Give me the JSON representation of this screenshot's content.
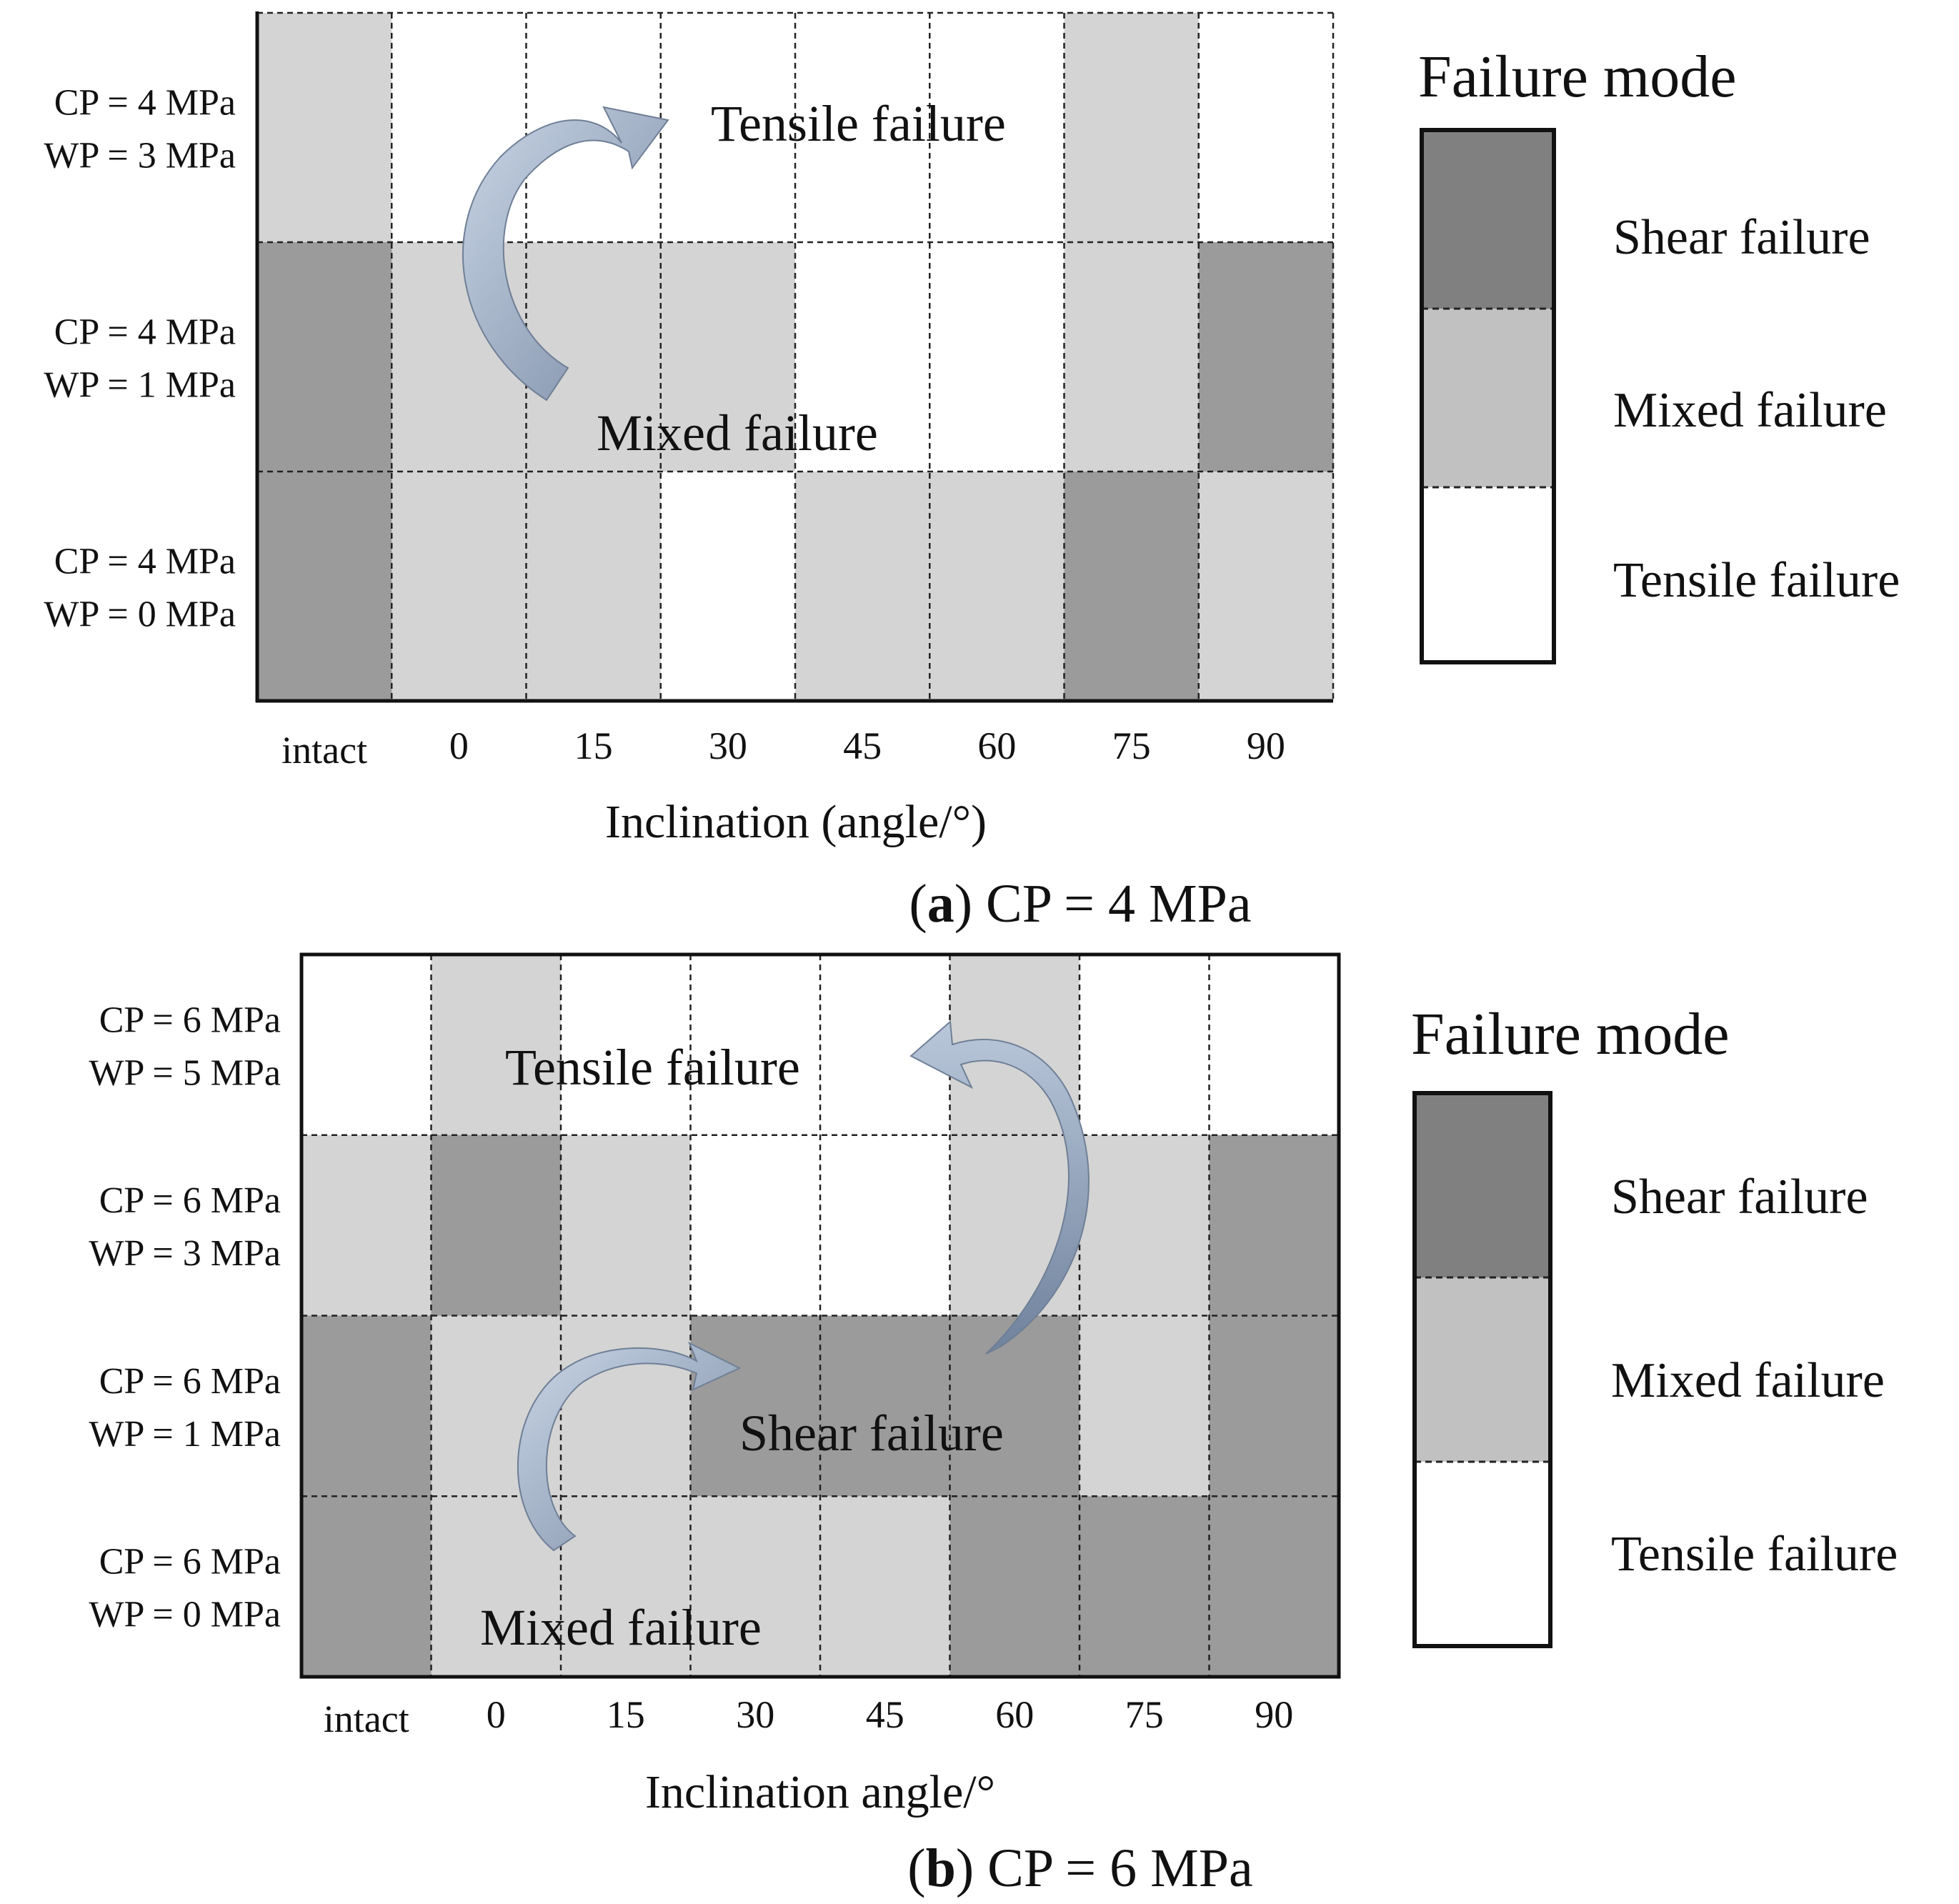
{
  "colors": {
    "Shear failure": "#9b9b9b",
    "Mixed failure": "#d4d4d4",
    "Tensile failure": "#ffffff",
    "legend_shear": "#808080",
    "legend_mixed": "#c1c1c1",
    "legend_tensile": "#ffffff",
    "arrow_light": "#c3d0e2",
    "arrow_dark": "#7d8ea6"
  },
  "chart_data": [
    {
      "type": "heatmap",
      "caption_letter": "a",
      "caption_rest": ") CP = 4 MPa",
      "xlabel": "Inclination (angle/°)",
      "x_categories": [
        "intact",
        "0",
        "15",
        "30",
        "45",
        "60",
        "75",
        "90"
      ],
      "rows": [
        {
          "label_line1": "CP = 4 MPa",
          "label_line2": "WP = 3 MPa",
          "modes": [
            "Mixed failure",
            "Tensile failure",
            "Tensile failure",
            "Tensile failure",
            "Tensile failure",
            "Tensile failure",
            "Mixed failure",
            "Tensile failure"
          ]
        },
        {
          "label_line1": "CP = 4 MPa",
          "label_line2": "WP = 1 MPa",
          "modes": [
            "Shear failure",
            "Mixed failure",
            "Mixed failure",
            "Mixed failure",
            "Tensile failure",
            "Tensile failure",
            "Mixed failure",
            "Shear failure"
          ]
        },
        {
          "label_line1": "CP = 4 MPa",
          "label_line2": "WP = 0 MPa",
          "modes": [
            "Shear failure",
            "Mixed failure",
            "Mixed failure",
            "Tensile failure",
            "Mixed failure",
            "Mixed failure",
            "Shear failure",
            "Mixed failure"
          ]
        }
      ],
      "annotations": [
        "Tensile failure",
        "Mixed failure"
      ],
      "legend": {
        "title": "Failure mode",
        "items": [
          "Shear failure",
          "Mixed failure",
          "Tensile failure"
        ]
      }
    },
    {
      "type": "heatmap",
      "caption_letter": "b",
      "caption_rest": ") CP = 6 MPa",
      "xlabel": "Inclination angle/°",
      "x_categories": [
        "intact",
        "0",
        "15",
        "30",
        "45",
        "60",
        "75",
        "90"
      ],
      "rows": [
        {
          "label_line1": "CP = 6 MPa",
          "label_line2": "WP = 5 MPa",
          "modes": [
            "Tensile failure",
            "Mixed failure",
            "Tensile failure",
            "Tensile failure",
            "Tensile failure",
            "Mixed failure",
            "Tensile failure",
            "Tensile failure"
          ]
        },
        {
          "label_line1": "CP = 6 MPa",
          "label_line2": "WP = 3 MPa",
          "modes": [
            "Mixed failure",
            "Shear failure",
            "Mixed failure",
            "Tensile failure",
            "Tensile failure",
            "Mixed failure",
            "Mixed failure",
            "Shear failure"
          ]
        },
        {
          "label_line1": "CP = 6 MPa",
          "label_line2": "WP = 1 MPa",
          "modes": [
            "Shear failure",
            "Mixed failure",
            "Mixed failure",
            "Shear failure",
            "Shear failure",
            "Shear failure",
            "Mixed failure",
            "Shear failure"
          ]
        },
        {
          "label_line1": "CP = 6 MPa",
          "label_line2": "WP = 0 MPa",
          "modes": [
            "Shear failure",
            "Mixed failure",
            "Mixed failure",
            "Mixed failure",
            "Mixed failure",
            "Shear failure",
            "Shear failure",
            "Shear failure"
          ]
        }
      ],
      "annotations": [
        "Tensile failure",
        "Shear failure",
        "Mixed failure"
      ],
      "legend": {
        "title": "Failure mode",
        "items": [
          "Shear failure",
          "Mixed failure",
          "Tensile failure"
        ]
      }
    }
  ]
}
